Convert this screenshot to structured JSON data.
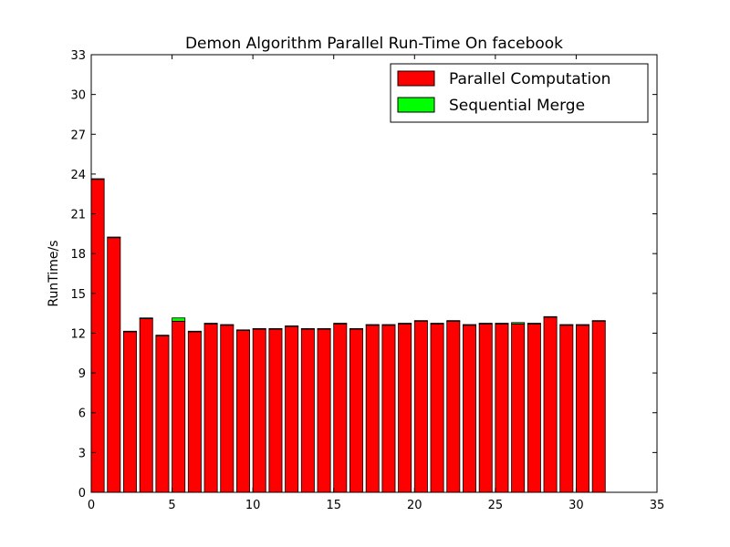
{
  "chart_data": {
    "type": "bar",
    "stacked": true,
    "title": "Demon Algorithm Parallel Run-Time On facebook",
    "xlabel": "",
    "ylabel": "RunTime/s",
    "xlim": [
      0,
      35
    ],
    "ylim": [
      0,
      33
    ],
    "xticks": [
      0,
      5,
      10,
      15,
      20,
      25,
      30,
      35
    ],
    "yticks": [
      0,
      3,
      6,
      9,
      12,
      15,
      18,
      21,
      24,
      27,
      30,
      33
    ],
    "bar_width": 0.8,
    "x": [
      0,
      1,
      2,
      3,
      4,
      5,
      6,
      7,
      8,
      9,
      10,
      11,
      12,
      13,
      14,
      15,
      16,
      17,
      18,
      19,
      20,
      21,
      22,
      23,
      24,
      25,
      26,
      27,
      28,
      29,
      30,
      31
    ],
    "series": [
      {
        "name": "Parallel Computation",
        "color": "#ff0000",
        "values": [
          23.6,
          19.2,
          12.1,
          13.1,
          11.8,
          12.9,
          12.1,
          12.7,
          12.6,
          12.2,
          12.3,
          12.3,
          12.5,
          12.3,
          12.3,
          12.7,
          12.3,
          12.6,
          12.6,
          12.7,
          12.9,
          12.7,
          12.9,
          12.6,
          12.7,
          12.7,
          12.7,
          12.7,
          13.2,
          12.6,
          12.6,
          12.9
        ]
      },
      {
        "name": "Sequential Merge",
        "color": "#00ff00",
        "values": [
          0.05,
          0.05,
          0.05,
          0.05,
          0.05,
          0.25,
          0.05,
          0.05,
          0.05,
          0.05,
          0.05,
          0.05,
          0.05,
          0.05,
          0.05,
          0.05,
          0.05,
          0.05,
          0.05,
          0.05,
          0.05,
          0.05,
          0.05,
          0.05,
          0.05,
          0.05,
          0.1,
          0.05,
          0.05,
          0.05,
          0.05,
          0.05
        ]
      }
    ],
    "legend": {
      "location": "top-right"
    },
    "grid": false
  }
}
